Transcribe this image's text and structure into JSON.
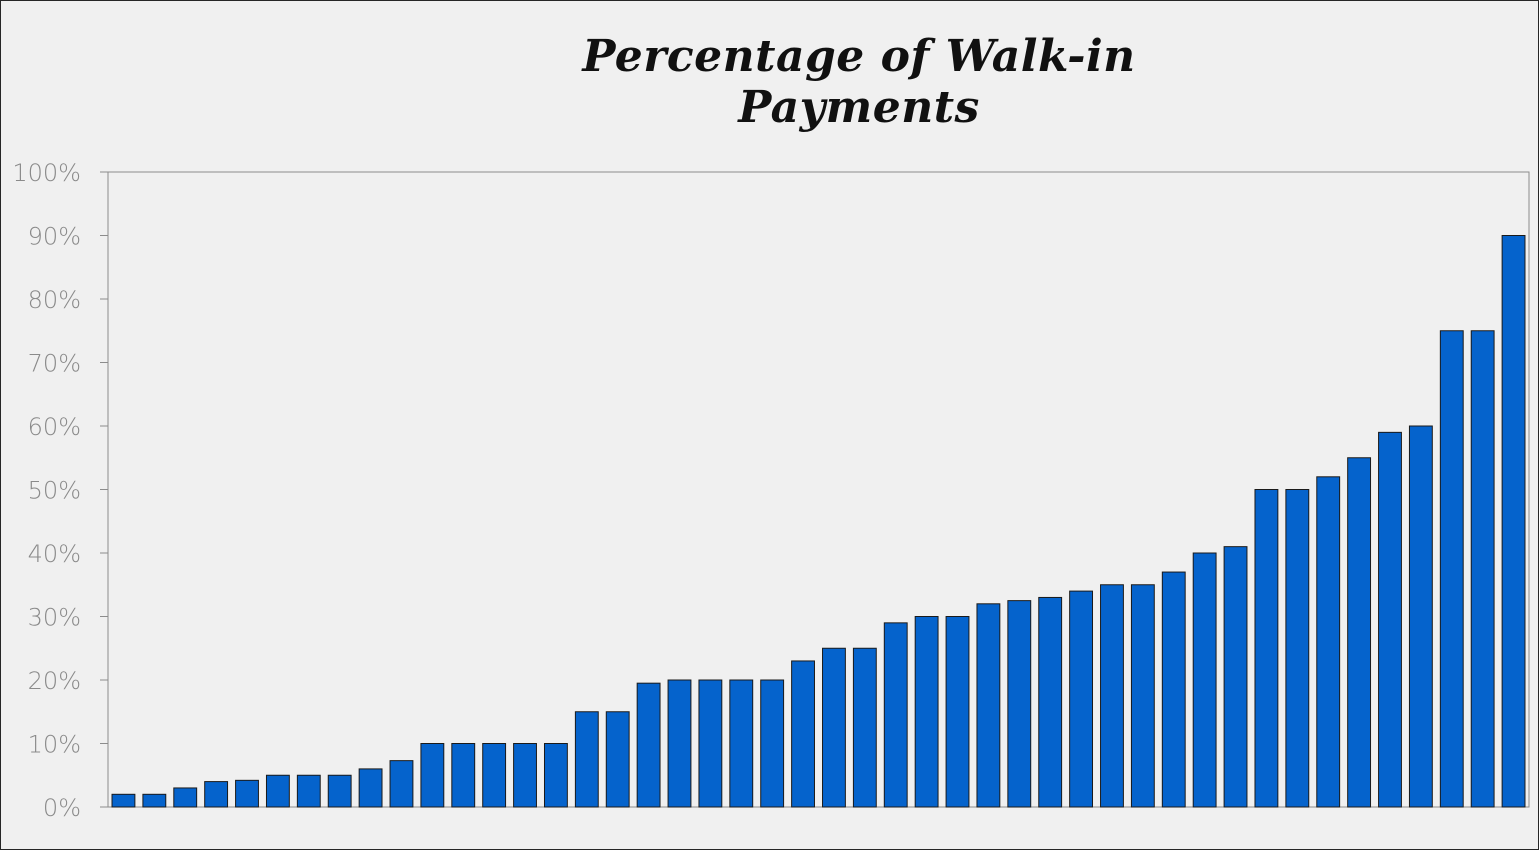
{
  "chart_data": {
    "type": "bar",
    "title": "Percentage of Walk-in Payments",
    "xlabel": "",
    "ylabel": "",
    "ylim": [
      0,
      100
    ],
    "yticks": [
      0,
      10,
      20,
      30,
      40,
      50,
      60,
      70,
      80,
      90,
      100
    ],
    "ytick_suffix": "%",
    "grid": false,
    "bar_color": "#0563cc",
    "bar_edge_color": "#1a1a1a",
    "values": [
      2,
      2,
      3,
      4,
      4.2,
      5,
      5,
      5,
      6,
      7.3,
      10,
      10,
      10,
      10,
      10,
      15,
      15,
      19.5,
      20,
      20,
      20,
      20,
      23,
      25,
      25,
      29,
      30,
      30,
      32,
      32.5,
      33,
      34,
      35,
      35,
      37,
      40,
      41,
      50,
      50,
      52,
      55,
      59,
      60,
      75,
      75,
      90
    ]
  }
}
